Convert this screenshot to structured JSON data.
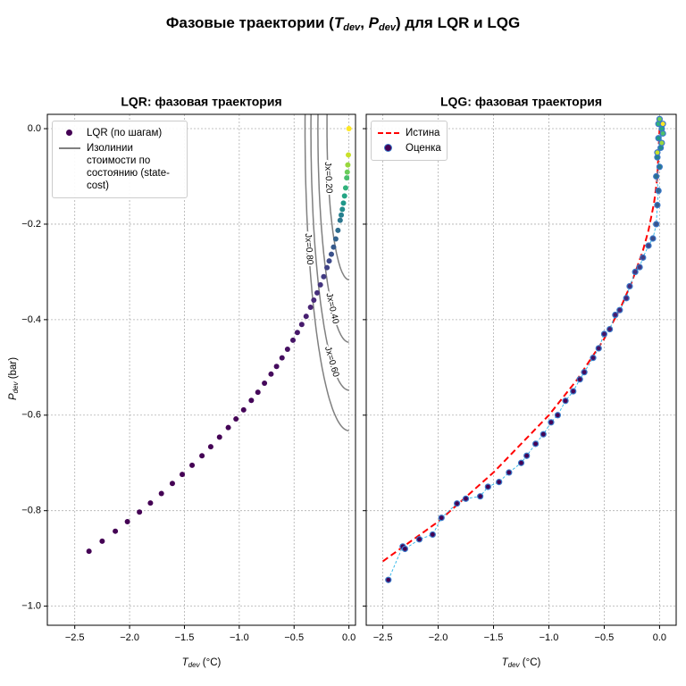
{
  "suptitle_parts": [
    "Фазовые траектории (",
    "T",
    "dev",
    ", ",
    "P",
    "dev",
    ") для LQR и LQG"
  ],
  "chart_data": [
    {
      "type": "scatter",
      "title": "LQR: фазовая траектория",
      "x_label": [
        "T",
        "dev",
        " (°C)"
      ],
      "y_label": [
        "P",
        "dev",
        " (bar)"
      ],
      "xlim": [
        -2.75,
        0.06
      ],
      "ylim": [
        -1.04,
        0.03
      ],
      "xticks": [
        {
          "value": -2.5,
          "label": "−2.5"
        },
        {
          "value": -2.0,
          "label": "−2.0"
        },
        {
          "value": -1.5,
          "label": "−1.5"
        },
        {
          "value": -1.0,
          "label": "−1.0"
        },
        {
          "value": -0.5,
          "label": "−0.5"
        },
        {
          "value": 0,
          "label": "0.0"
        }
      ],
      "yticks": [
        {
          "value": 0,
          "label": "0.0"
        },
        {
          "value": -0.2,
          "label": "−0.2"
        },
        {
          "value": -0.4,
          "label": "−0.4"
        },
        {
          "value": -0.6,
          "label": "−0.6"
        },
        {
          "value": -0.8,
          "label": "−0.8"
        },
        {
          "value": -1.0,
          "label": "−1.0"
        }
      ],
      "grid": true,
      "colormap": "viridis",
      "legend": "upper left",
      "series": [
        {
          "name": "LQR (по шагам)",
          "kind": "scatter",
          "x": [
            -2.37,
            -2.25,
            -2.13,
            -2.02,
            -1.91,
            -1.81,
            -1.71,
            -1.61,
            -1.52,
            -1.43,
            -1.34,
            -1.26,
            -1.18,
            -1.1,
            -1.03,
            -0.96,
            -0.89,
            -0.83,
            -0.77,
            -0.71,
            -0.66,
            -0.61,
            -0.56,
            -0.51,
            -0.47,
            -0.43,
            -0.39,
            -0.35,
            -0.32,
            -0.29,
            -0.26,
            -0.23,
            -0.2,
            -0.18,
            -0.16,
            -0.14,
            -0.12,
            -0.1,
            -0.08,
            -0.07,
            -0.06,
            -0.05,
            -0.04,
            -0.03,
            -0.02,
            -0.015,
            -0.01,
            -0.005,
            0.0
          ],
          "values": [
            -0.885,
            -0.864,
            -0.843,
            -0.823,
            -0.803,
            -0.784,
            -0.764,
            -0.743,
            -0.724,
            -0.705,
            -0.685,
            -0.666,
            -0.646,
            -0.626,
            -0.608,
            -0.589,
            -0.569,
            -0.552,
            -0.533,
            -0.514,
            -0.498,
            -0.48,
            -0.462,
            -0.443,
            -0.427,
            -0.41,
            -0.393,
            -0.374,
            -0.359,
            -0.344,
            -0.327,
            -0.31,
            -0.291,
            -0.277,
            -0.263,
            -0.248,
            -0.231,
            -0.213,
            -0.192,
            -0.181,
            -0.169,
            -0.156,
            -0.141,
            -0.124,
            -0.103,
            -0.091,
            -0.076,
            -0.055,
            0.0
          ]
        }
      ],
      "contours": {
        "name": "Изолинии стоимости по состоянию (state-cost)",
        "color": "#808080",
        "levels": [
          0.2,
          0.4,
          0.6,
          0.8
        ],
        "level_labels": [
          "Jx=0.20",
          "Jx=0.40",
          "Jx=0.60",
          "Jx=0.80"
        ]
      }
    },
    {
      "type": "scatter",
      "title": "LQG: фазовая траектория",
      "x_label": [
        "T",
        "dev",
        " (°C)"
      ],
      "xlim": [
        -2.65,
        0.15
      ],
      "ylim": [
        -1.04,
        0.03
      ],
      "xticks": [
        {
          "value": -2.5,
          "label": "−2.5"
        },
        {
          "value": -2.0,
          "label": "−2.0"
        },
        {
          "value": -1.5,
          "label": "−1.5"
        },
        {
          "value": -1.0,
          "label": "−1.0"
        },
        {
          "value": -0.5,
          "label": "−0.5"
        },
        {
          "value": 0,
          "label": "0.0"
        }
      ],
      "yticks": [
        0,
        -0.2,
        -0.4,
        -0.6,
        -0.8,
        -1.0
      ],
      "ytick_labels": false,
      "grid": true,
      "colormap": "viridis",
      "legend": "upper left",
      "series": [
        {
          "name": "Истина",
          "kind": "line",
          "color": "#ff0000",
          "dashed": true,
          "x": [
            -2.5,
            -2.0,
            -1.5,
            -1.0,
            -0.75,
            -0.5,
            -0.35,
            -0.25,
            -0.15,
            -0.1,
            -0.05,
            -0.02,
            0.0
          ],
          "values": [
            -0.906,
            -0.823,
            -0.72,
            -0.6,
            -0.527,
            -0.44,
            -0.374,
            -0.321,
            -0.255,
            -0.213,
            -0.156,
            -0.103,
            0.0
          ]
        },
        {
          "name": "Оценка",
          "kind": "scatter",
          "line_color": "#2bb5e8",
          "edge_color": "#3a78c8",
          "x": [
            -2.45,
            -2.32,
            -2.3,
            -2.17,
            -2.05,
            -1.97,
            -1.83,
            -1.75,
            -1.62,
            -1.55,
            -1.45,
            -1.36,
            -1.25,
            -1.2,
            -1.12,
            -1.05,
            -0.98,
            -0.92,
            -0.85,
            -0.78,
            -0.72,
            -0.68,
            -0.6,
            -0.55,
            -0.5,
            -0.45,
            -0.4,
            -0.36,
            -0.3,
            -0.27,
            -0.22,
            -0.18,
            -0.15,
            -0.1,
            -0.06,
            -0.03,
            -0.02,
            -0.01,
            -0.03,
            0.0,
            -0.02,
            0.01,
            -0.01,
            0.02,
            -0.01,
            0.03,
            0.0,
            0.02,
            -0.02,
            0.03
          ],
          "values": [
            -0.945,
            -0.875,
            -0.88,
            -0.86,
            -0.85,
            -0.815,
            -0.785,
            -0.775,
            -0.77,
            -0.75,
            -0.74,
            -0.72,
            -0.7,
            -0.685,
            -0.66,
            -0.64,
            -0.615,
            -0.6,
            -0.57,
            -0.55,
            -0.525,
            -0.51,
            -0.48,
            -0.46,
            -0.43,
            -0.42,
            -0.39,
            -0.38,
            -0.355,
            -0.33,
            -0.3,
            -0.29,
            -0.27,
            -0.245,
            -0.23,
            -0.2,
            -0.16,
            -0.13,
            -0.1,
            -0.08,
            -0.06,
            -0.04,
            -0.02,
            0.0,
            0.01,
            -0.01,
            0.02,
            -0.03,
            -0.05,
            0.01
          ]
        }
      ]
    }
  ]
}
